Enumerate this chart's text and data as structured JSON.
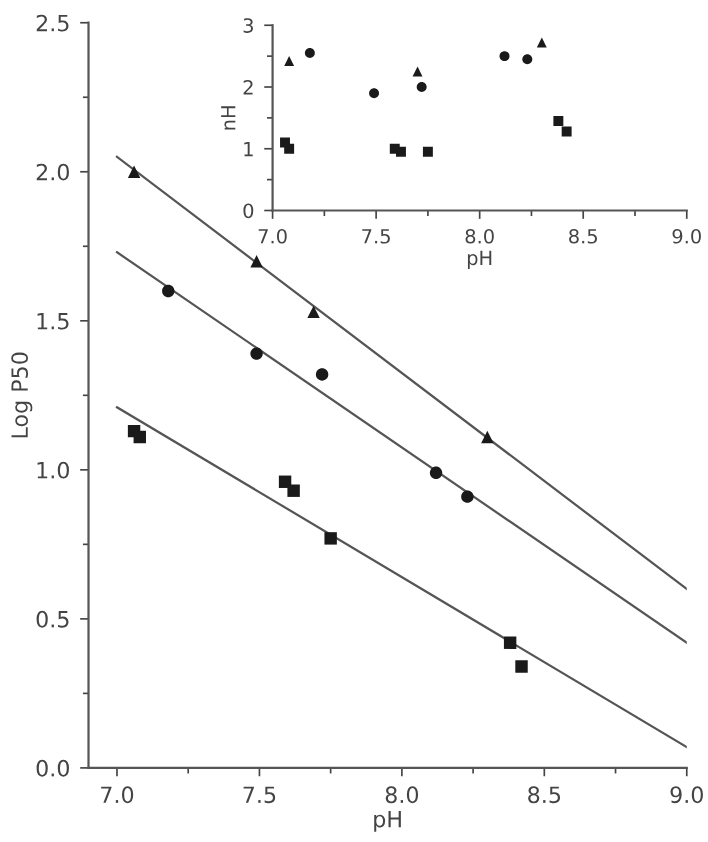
{
  "chart_data": [
    {
      "type": "scatter",
      "xlabel": "pH",
      "ylabel": "Log P50",
      "xlim": [
        6.9,
        9.0
      ],
      "ylim": [
        0.0,
        2.5
      ],
      "xticks": [
        {
          "value": 7.0,
          "label": "7.0"
        },
        {
          "value": 7.5,
          "label": "7.5"
        },
        {
          "value": 8.0,
          "label": "8.0"
        },
        {
          "value": 8.5,
          "label": "8.5"
        },
        {
          "value": 9.0,
          "label": "9.0"
        }
      ],
      "yticks": [
        {
          "value": 0.0,
          "label": "0.0"
        },
        {
          "value": 0.5,
          "label": "0.5"
        },
        {
          "value": 1.0,
          "label": "1.0"
        },
        {
          "value": 1.5,
          "label": "1.5"
        },
        {
          "value": 2.0,
          "label": "2.0"
        },
        {
          "value": 2.5,
          "label": "2.5"
        }
      ],
      "grid": false,
      "legend": false,
      "series": [
        {
          "marker": "triangle",
          "color": "#1a1a1a",
          "x": [
            7.06,
            7.49,
            7.69,
            8.3
          ],
          "values": [
            2.0,
            1.7,
            1.53,
            1.11
          ]
        },
        {
          "marker": "circle",
          "color": "#1a1a1a",
          "x": [
            7.18,
            7.49,
            7.72,
            8.12,
            8.23
          ],
          "values": [
            1.6,
            1.39,
            1.32,
            0.99,
            0.91
          ]
        },
        {
          "marker": "square",
          "color": "#1a1a1a",
          "x": [
            7.06,
            7.08,
            7.59,
            7.62,
            7.75,
            8.38,
            8.42
          ],
          "values": [
            1.13,
            1.11,
            0.96,
            0.93,
            0.77,
            0.42,
            0.34
          ]
        },
        {
          "type": "line",
          "marker": "none",
          "color": "#555555",
          "x": [
            7.0,
            9.0
          ],
          "values": [
            2.05,
            0.6
          ]
        },
        {
          "type": "line",
          "marker": "none",
          "color": "#555555",
          "x": [
            7.0,
            9.0
          ],
          "values": [
            1.73,
            0.42
          ]
        },
        {
          "type": "line",
          "marker": "none",
          "color": "#555555",
          "x": [
            7.0,
            9.0
          ],
          "values": [
            1.21,
            0.07
          ]
        }
      ]
    },
    {
      "type": "scatter",
      "xlabel": "pH",
      "ylabel": "nH",
      "xlim": [
        7.0,
        9.0
      ],
      "ylim": [
        0,
        3
      ],
      "xticks": [
        {
          "value": 7.0,
          "label": "7.0"
        },
        {
          "value": 7.5,
          "label": "7.5"
        },
        {
          "value": 8.0,
          "label": "8.0"
        },
        {
          "value": 8.5,
          "label": "8.5"
        },
        {
          "value": 9.0,
          "label": "9.0"
        }
      ],
      "yticks": [
        0,
        1,
        2,
        3
      ],
      "grid": false,
      "legend": false,
      "series": [
        {
          "marker": "triangle",
          "color": "#1a1a1a",
          "x": [
            7.08,
            7.7,
            8.3
          ],
          "values": [
            2.42,
            2.25,
            2.72
          ]
        },
        {
          "marker": "circle",
          "color": "#1a1a1a",
          "x": [
            7.18,
            7.49,
            7.72,
            8.12,
            8.23
          ],
          "values": [
            2.55,
            1.9,
            2.0,
            2.5,
            2.45
          ]
        },
        {
          "marker": "square",
          "color": "#1a1a1a",
          "x": [
            7.06,
            7.08,
            7.59,
            7.62,
            7.75,
            8.38,
            8.42
          ],
          "values": [
            1.1,
            1.0,
            1.0,
            0.95,
            0.95,
            1.45,
            1.28
          ]
        }
      ]
    }
  ]
}
